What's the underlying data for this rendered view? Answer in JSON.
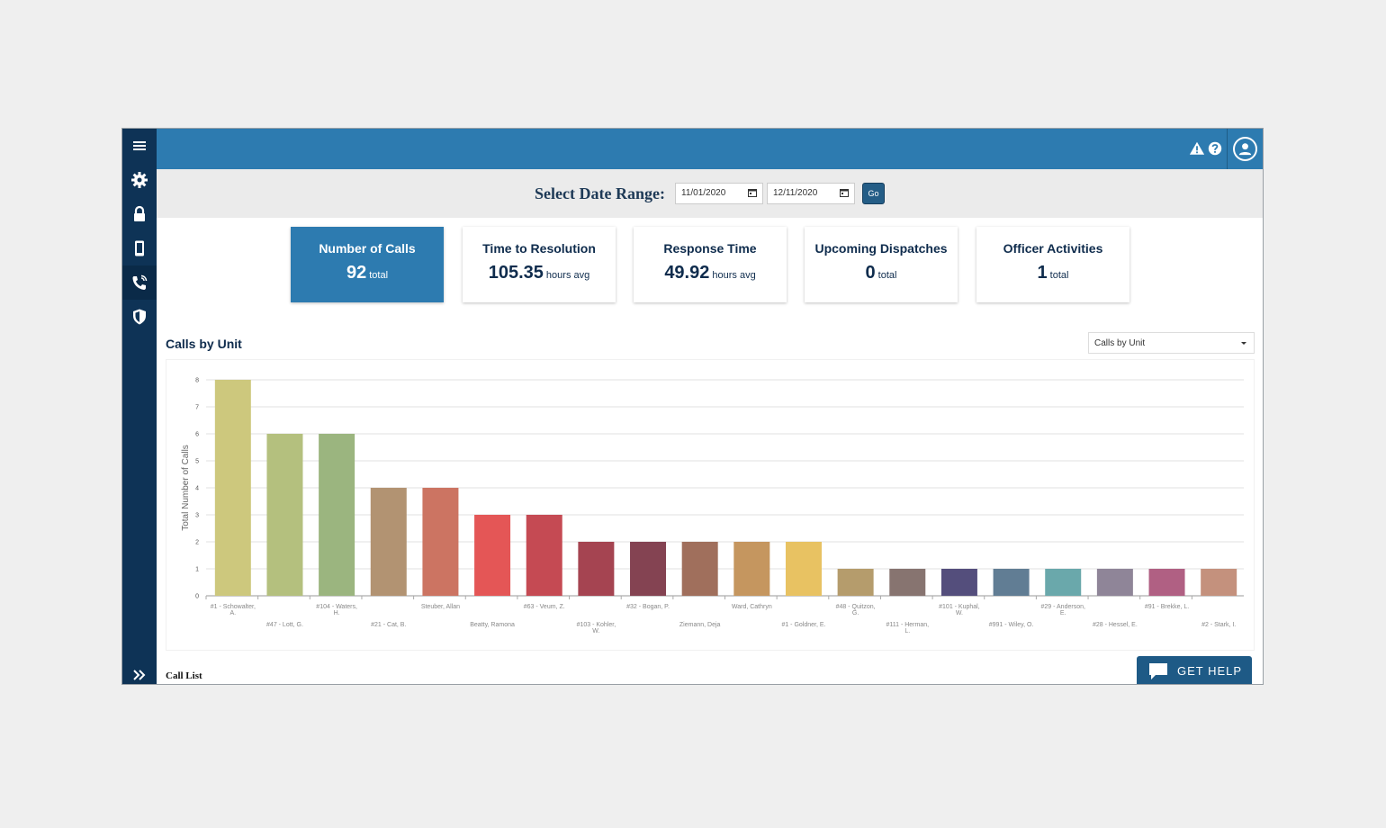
{
  "sidebar": {
    "items": [
      {
        "name": "menu-icon"
      },
      {
        "name": "gear-icon"
      },
      {
        "name": "lock-icon"
      },
      {
        "name": "mobile-icon"
      },
      {
        "name": "phone-icon"
      },
      {
        "name": "shield-icon"
      }
    ],
    "expand_icon": "double-chevron-right-icon"
  },
  "header": {
    "icons": [
      "warning-icon",
      "help-icon",
      "user-avatar-icon"
    ]
  },
  "date_range": {
    "label": "Select Date Range:",
    "start": "11/01/2020",
    "end": "12/11/2020",
    "go_label": "Go"
  },
  "cards": [
    {
      "title": "Number of Calls",
      "value": "92",
      "unit": "total"
    },
    {
      "title": "Time to Resolution",
      "value": "105.35",
      "unit": "hours avg"
    },
    {
      "title": "Response Time",
      "value": "49.92",
      "unit": "hours avg"
    },
    {
      "title": "Upcoming Dispatches",
      "value": "0",
      "unit": "total"
    },
    {
      "title": "Officer Activities",
      "value": "1",
      "unit": "total"
    }
  ],
  "section": {
    "title": "Calls by Unit",
    "select_value": "Calls by Unit"
  },
  "chart_data": {
    "type": "bar",
    "ylabel": "Total Number of Calls",
    "ylim": [
      0,
      8
    ],
    "yticks": [
      0,
      1,
      2,
      3,
      4,
      5,
      6,
      7,
      8
    ],
    "grid": true,
    "categories": [
      [
        "#1 - Schowalter,",
        "A."
      ],
      [
        "#47 - Lott, G."
      ],
      [
        "#104 - Waters,",
        "H."
      ],
      [
        "#21 - Cat, B."
      ],
      [
        "Steuber, Allan"
      ],
      [
        "Beatty, Ramona"
      ],
      [
        "#63 - Veum, Z."
      ],
      [
        "#103 - Kohler,",
        "W."
      ],
      [
        "#32 - Bogan, P."
      ],
      [
        "Ziemann, Deja"
      ],
      [
        "Ward, Cathryn"
      ],
      [
        "#1 - Goldner, E."
      ],
      [
        "#48 - Quitzon,",
        "G."
      ],
      [
        "#111 - Herman,",
        "L."
      ],
      [
        "#101 - Kuphal,",
        "W."
      ],
      [
        "#991 - Wiley, O."
      ],
      [
        "#29 - Anderson,",
        "E."
      ],
      [
        "#28 - Hessel, E."
      ],
      [
        "#91 - Brekke, L."
      ],
      [
        "#2 - Stark, I."
      ]
    ],
    "values": [
      8,
      6,
      6,
      4,
      4,
      3,
      3,
      2,
      2,
      2,
      2,
      2,
      1,
      1,
      1,
      1,
      1,
      1,
      1,
      1
    ],
    "colors": [
      "#cdc87d",
      "#b4c07e",
      "#9bb57f",
      "#b29372",
      "#cc7462",
      "#e45656",
      "#c54a53",
      "#a54451",
      "#844352",
      "#a06f5c",
      "#c5965f",
      "#e8c262",
      "#b59c6c",
      "#877470",
      "#544e7c",
      "#617d94",
      "#6aa8ab",
      "#8f8598",
      "#b06083",
      "#c4917d"
    ]
  },
  "call_list_label": "Call List",
  "help": {
    "label": "GET HELP"
  }
}
